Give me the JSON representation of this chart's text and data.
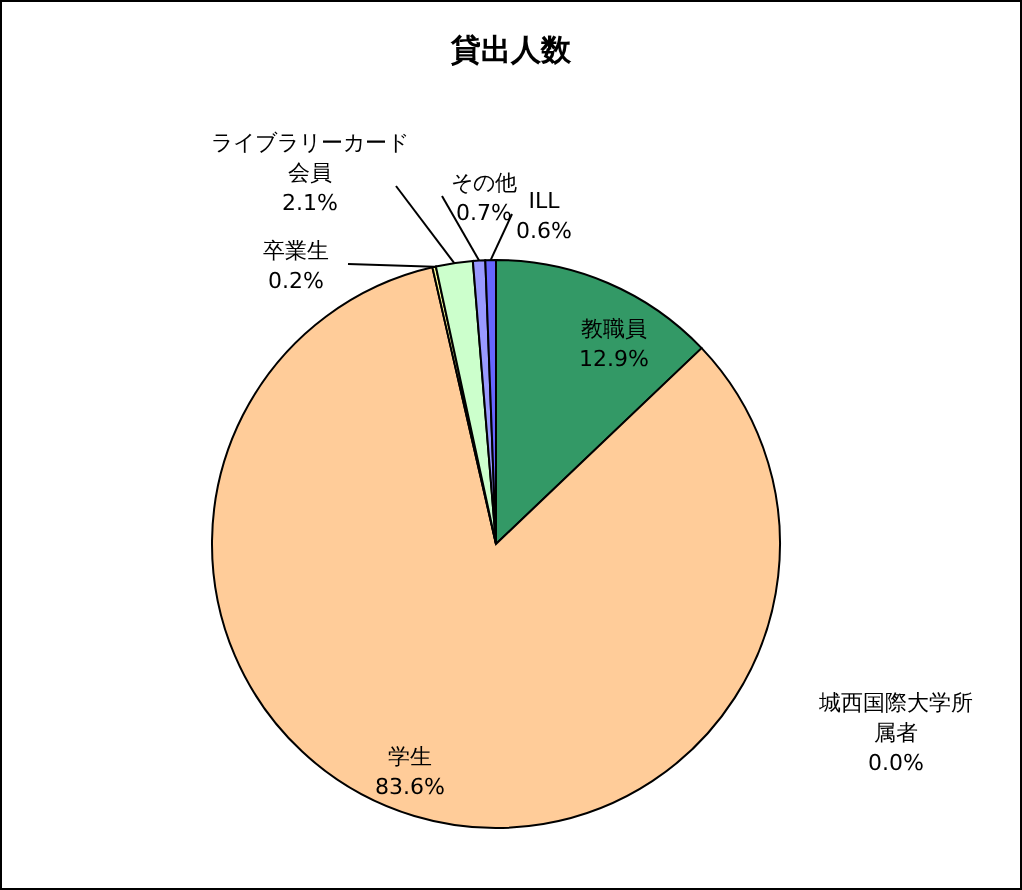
{
  "chart_data": {
    "type": "pie",
    "title": "貸出人数",
    "categories": [
      "教職員",
      "城西国際大学所属者",
      "学生",
      "卒業生",
      "ライブラリーカード会員",
      "その他",
      "ILL"
    ],
    "values": [
      12.9,
      0.0,
      83.6,
      0.2,
      2.1,
      0.7,
      0.6
    ],
    "value_labels": [
      "12.9%",
      "0.0%",
      "83.6%",
      "0.2%",
      "2.1%",
      "0.7%",
      "0.6%"
    ],
    "colors": [
      "#339966",
      "#ffcc99",
      "#ffcc99",
      "#ffff99",
      "#ccffcc",
      "#9999ff",
      "#6666ff"
    ]
  }
}
